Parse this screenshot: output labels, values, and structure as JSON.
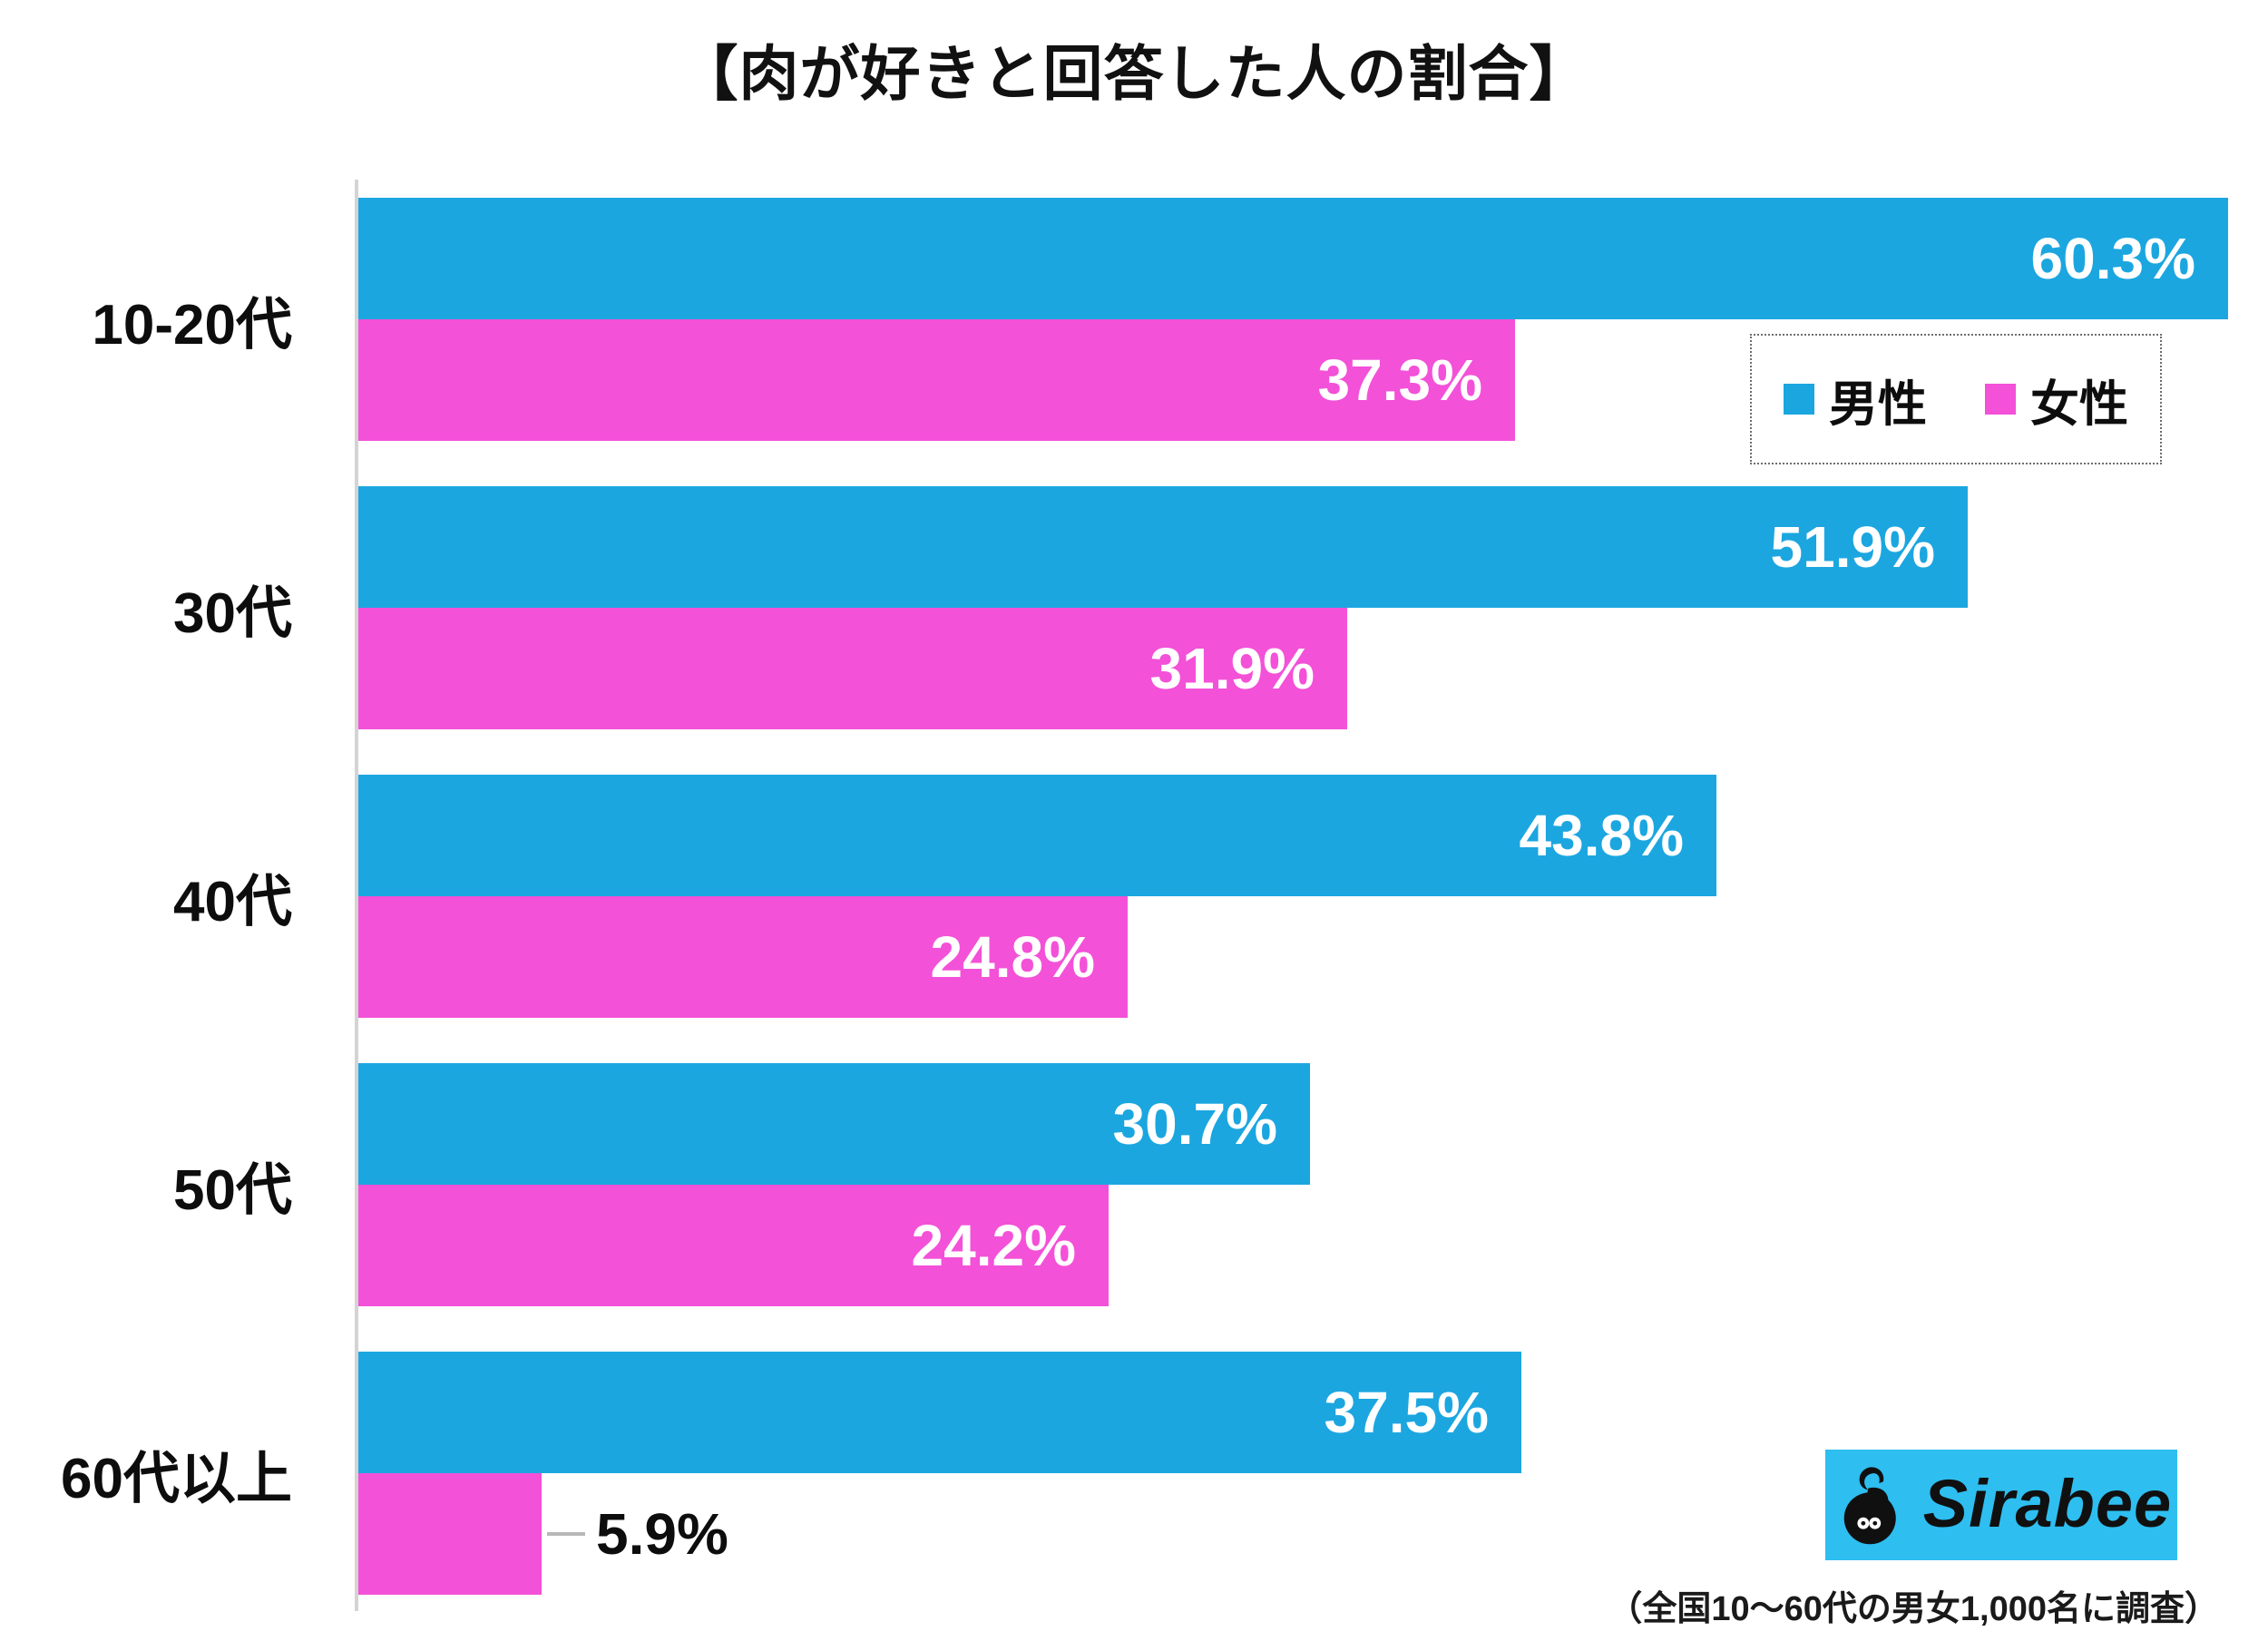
{
  "title": "【肉が好きと回答した人の割合】",
  "footnote": "（全国10～60代の男女1,000名に調査）",
  "logo": {
    "text": "Sirabee",
    "bg_color": "#2ebef0",
    "icon": "sirabee-bee-icon"
  },
  "colors": {
    "male": "#1ca6e0",
    "female": "#f351d8",
    "axis": "#d4d4d4",
    "value_label_inside": "#ffffff",
    "value_label_outside": "#0d0d0d"
  },
  "chart_data": {
    "type": "bar",
    "orientation": "horizontal",
    "title": "【肉が好きと回答した人の割合】",
    "categories": [
      "10-20代",
      "30代",
      "40代",
      "50代",
      "60代以上"
    ],
    "series": [
      {
        "name": "男性",
        "color": "#1ca6e0",
        "values": [
          60.3,
          51.9,
          43.8,
          30.7,
          37.5
        ]
      },
      {
        "name": "女性",
        "color": "#f351d8",
        "values": [
          37.3,
          31.9,
          24.8,
          24.2,
          5.9
        ]
      }
    ],
    "value_suffix": "%",
    "xlim": [
      0,
      61
    ],
    "grid": false,
    "xlabel": "",
    "ylabel": "",
    "legend_position": "top-right",
    "annotations": "values shown at end of each bar; small values (5.9%) labeled outside bar with leader line"
  }
}
